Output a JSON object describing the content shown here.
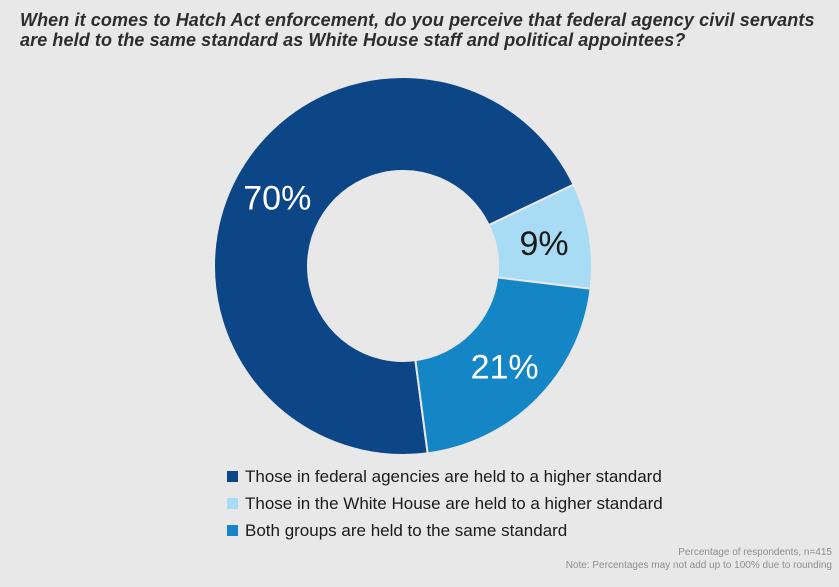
{
  "title": {
    "line1": "When it comes to Hatch Act enforcement, do you perceive that federal agency civil servants",
    "line2": "are held to the same standard as White House staff and political appointees?"
  },
  "chart_data": {
    "type": "pie",
    "subtype": "donut",
    "title": "When it comes to Hatch Act enforcement, do you perceive that federal agency civil servants are held to the same standard as White House staff and political appointees?",
    "categories": [
      "Those in federal agencies are held to a higher standard",
      "Those in the White House are held to a higher standard",
      "Both groups are held to the same standard"
    ],
    "values": [
      70,
      9,
      21
    ],
    "slices": [
      {
        "value": 70,
        "label": "70%",
        "color": "#0d4687",
        "label_color": "#ffffff",
        "legend": "Those in federal agencies are held to a higher standard"
      },
      {
        "value": 9,
        "label": "9%",
        "color": "#a8dcf4",
        "label_color": "#1a1a1a",
        "legend": "Those in the White House are held to a higher standard"
      },
      {
        "value": 21,
        "label": "21%",
        "color": "#1586c5",
        "label_color": "#ffffff",
        "legend": "Both groups are held to the same standard"
      }
    ],
    "start_angle_deg": 172.5,
    "direction": "clockwise",
    "separator_color": "#e8e8e8",
    "legend_position": "bottom",
    "grid": false
  },
  "footer": {
    "line1": "Percentage of respondents, n=415",
    "line2": "Note: Percentages may not add up to 100% due to rounding"
  },
  "colors": {
    "background": "#e8e8e8",
    "title_text": "#2d2d2d",
    "legend_text": "#1a1a1a",
    "footer_text": "#8e8e8e"
  }
}
